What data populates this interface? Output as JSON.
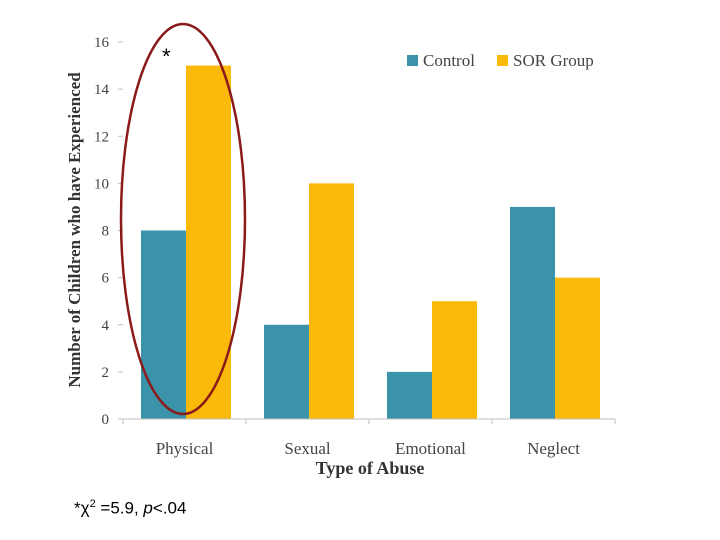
{
  "colors": {
    "control": "#3a93a8",
    "sor": "#fbb909",
    "ellipse": "#8b1a1a",
    "axis": "#bfbfbf"
  },
  "annotation": {
    "star": "*"
  },
  "footnote": {
    "star": "*",
    "chi": "χ",
    "sup": "2",
    "stat": " =5.9, ",
    "p": "p",
    "rest": "<.04"
  },
  "chart_data": {
    "type": "bar",
    "title": "",
    "xlabel": "Type of Abuse",
    "ylabel": "Number of Children who have Experienced",
    "categories": [
      "Physical",
      "Sexual",
      "Emotional",
      "Neglect"
    ],
    "series": [
      {
        "name": "Control",
        "values": [
          8,
          4,
          2,
          9
        ]
      },
      {
        "name": "SOR Group",
        "values": [
          15,
          10,
          5,
          6
        ]
      }
    ],
    "ylim": [
      0,
      16
    ],
    "yticks": [
      "0",
      "2",
      "4",
      "6",
      "8",
      "10",
      "12",
      "14",
      "16"
    ],
    "grid": false,
    "legend": "top-right"
  }
}
